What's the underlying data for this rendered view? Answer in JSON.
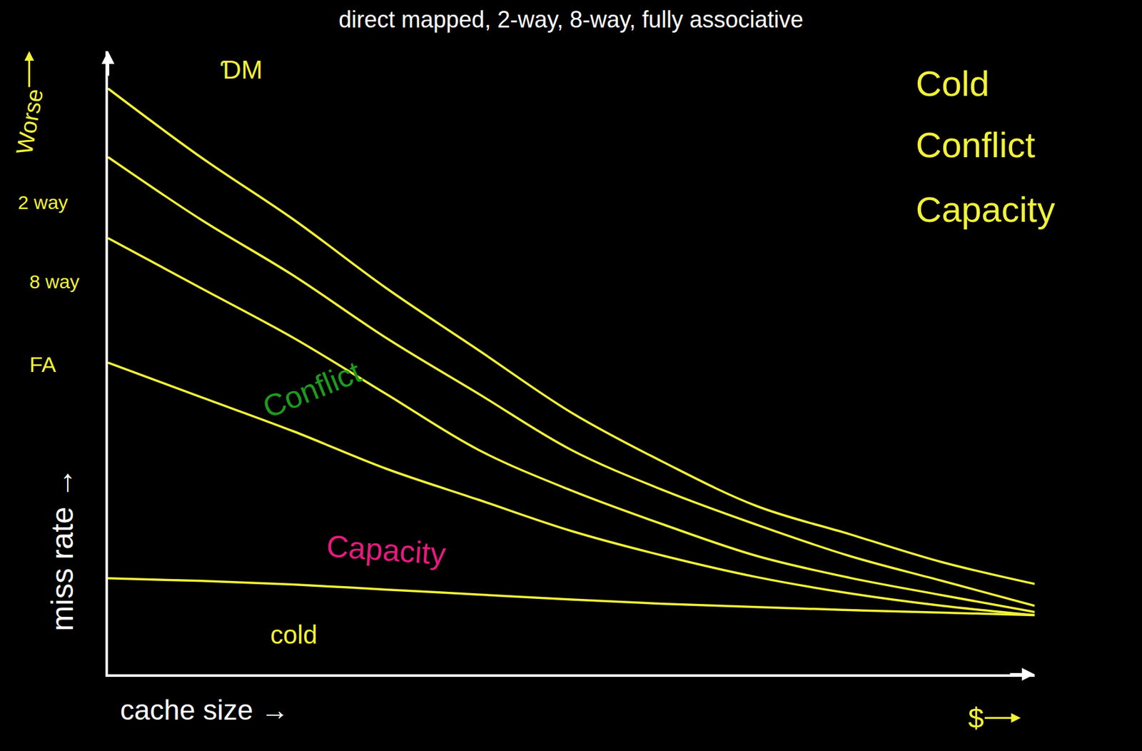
{
  "chart_data": {
    "type": "line",
    "title": "direct mapped, 2-way, 8-way, fully associative",
    "x_label": "cache size →",
    "y_label": "miss rate →",
    "x": [
      0,
      10,
      20,
      30,
      40,
      50,
      60,
      70,
      80,
      90,
      100
    ],
    "series": [
      {
        "name": "ƊM",
        "color": "#f2f23a",
        "values": [
          94,
          83,
          73,
          62,
          52,
          42,
          34,
          27,
          22.5,
          18,
          14.5
        ]
      },
      {
        "name": "2 way",
        "color": "#f2f23a",
        "values": [
          83,
          73,
          64,
          54,
          45,
          36,
          29.5,
          24,
          19,
          15,
          11
        ]
      },
      {
        "name": "8 way",
        "color": "#f2f23a",
        "values": [
          70,
          62,
          54,
          45,
          36,
          29.5,
          24,
          19,
          15.5,
          12.7,
          10
        ]
      },
      {
        "name": "FA",
        "color": "#f2f23a",
        "values": [
          50,
          44.5,
          39,
          33,
          28,
          23,
          19,
          15.6,
          13,
          11,
          9.5
        ]
      },
      {
        "name": "cold",
        "color": "#f2f23a",
        "values": [
          15.4,
          15,
          14.4,
          13.6,
          12.8,
          12,
          11.3,
          10.8,
          10.3,
          9.9,
          9.5
        ]
      }
    ],
    "annotations": [
      {
        "text": "Conflict",
        "color": "#1f9a1f"
      },
      {
        "text": "Capacity",
        "color": "#e8197f"
      },
      {
        "text": "Cold",
        "color": "#f2f23a"
      },
      {
        "text": "Conflict",
        "color": "#f2f23a"
      },
      {
        "text": "Capacity",
        "color": "#f2f23a"
      },
      {
        "text": "Worse",
        "color": "#f2f23a"
      },
      {
        "text": "$",
        "color": "#f2f23a"
      }
    ],
    "xlim": [
      0,
      100
    ],
    "ylim": [
      0,
      100
    ],
    "tick_labels": false,
    "grid": false
  }
}
